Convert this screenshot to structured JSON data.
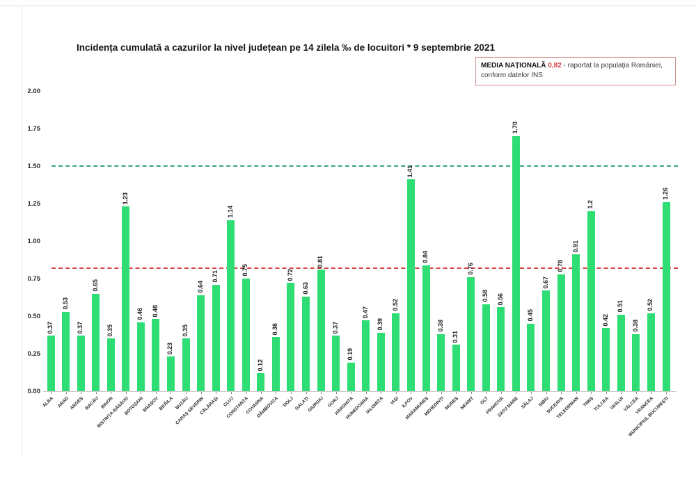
{
  "title": "Incidența cumulată a cazurilor la nivel județean pe 14 zilela ‰ de locuitori * 9 septembrie 2021",
  "legend": {
    "label": "MEDIA NAȚIONALĂ",
    "value": "0,82",
    "suffix": " - raportat la populația României,",
    "line2": "conform datelor INS"
  },
  "chart_data": {
    "type": "bar",
    "title": "Incidența cumulată a cazurilor la nivel județean pe 14 zilela ‰ de locuitori * 9 septembrie 2021",
    "categories": [
      "ALBA",
      "ARAD",
      "ARGEȘ",
      "BACĂU",
      "BIHOR",
      "BISTRIȚA-NĂSĂUD",
      "BOTOȘANI",
      "BRAȘOV",
      "BRĂILA",
      "BUZĂU",
      "CARAȘ SEVERIN",
      "CĂLĂRAȘI",
      "CLUJ",
      "CONSTANȚA",
      "COVASNA",
      "DÂMBOVIȚA",
      "DOLJ",
      "GALAȚI",
      "GIURGIU",
      "GORJ",
      "HARGHITA",
      "HUNEDOARA",
      "IALOMIȚA",
      "IAȘI",
      "ILFOV",
      "MARAMUREȘ",
      "MEHEDINȚI",
      "MUREȘ",
      "NEAMȚ",
      "OLT",
      "PRAHOVA",
      "SATU MARE",
      "SĂLAJ",
      "SIBIU",
      "SUCEAVA",
      "TELEORMAN",
      "TIMIȘ",
      "TULCEA",
      "VASLUI",
      "VÂLCEA",
      "VRANCEA",
      "MUNICIPIUL BUCUREȘTI"
    ],
    "values": [
      0.37,
      0.53,
      0.37,
      0.65,
      0.35,
      1.23,
      0.46,
      0.48,
      0.23,
      0.35,
      0.64,
      0.71,
      1.14,
      0.75,
      0.12,
      0.36,
      0.72,
      0.63,
      0.81,
      0.37,
      0.19,
      0.47,
      0.39,
      0.52,
      1.41,
      0.84,
      0.38,
      0.31,
      0.76,
      0.58,
      0.56,
      1.7,
      0.45,
      0.67,
      0.78,
      0.91,
      1.2,
      0.42,
      0.51,
      0.38,
      0.52,
      1.26
    ],
    "value_labels": [
      "0.37",
      "0.53",
      "0.37",
      "0.65",
      "0.35",
      "1.23",
      "0.46",
      "0.48",
      "0.23",
      "0.35",
      "0.64",
      "0.71",
      "1.14",
      "0.75",
      "0.12",
      "0.36",
      "0.72",
      "0.63",
      "0.81",
      "0.37",
      "0.19",
      "0.47",
      "0.39",
      "0.52",
      "1.41",
      "0.84",
      "0.38",
      "0.31",
      "0.76",
      "0.58",
      "0.56",
      "1.70",
      "0.45",
      "0.67",
      "0.78",
      "0.91",
      "1.2",
      "0.42",
      "0.51",
      "0.38",
      "0.52",
      "1.26"
    ],
    "xlabel": "",
    "ylabel": "",
    "ylim": [
      0,
      2.0
    ],
    "yticks": [
      "0.00",
      "0.25",
      "0.50",
      "0.75",
      "1.00",
      "1.25",
      "1.50",
      "1.75",
      "2.00"
    ],
    "grid": false,
    "legend_position": "top-right",
    "bar_color": "#2ede74",
    "reference_lines": [
      {
        "name": "upper-threshold",
        "value": 1.5,
        "color": "#38a873",
        "style": "dashed"
      },
      {
        "name": "national-average",
        "value": 0.82,
        "color": "#d94040",
        "style": "dashed"
      }
    ]
  }
}
